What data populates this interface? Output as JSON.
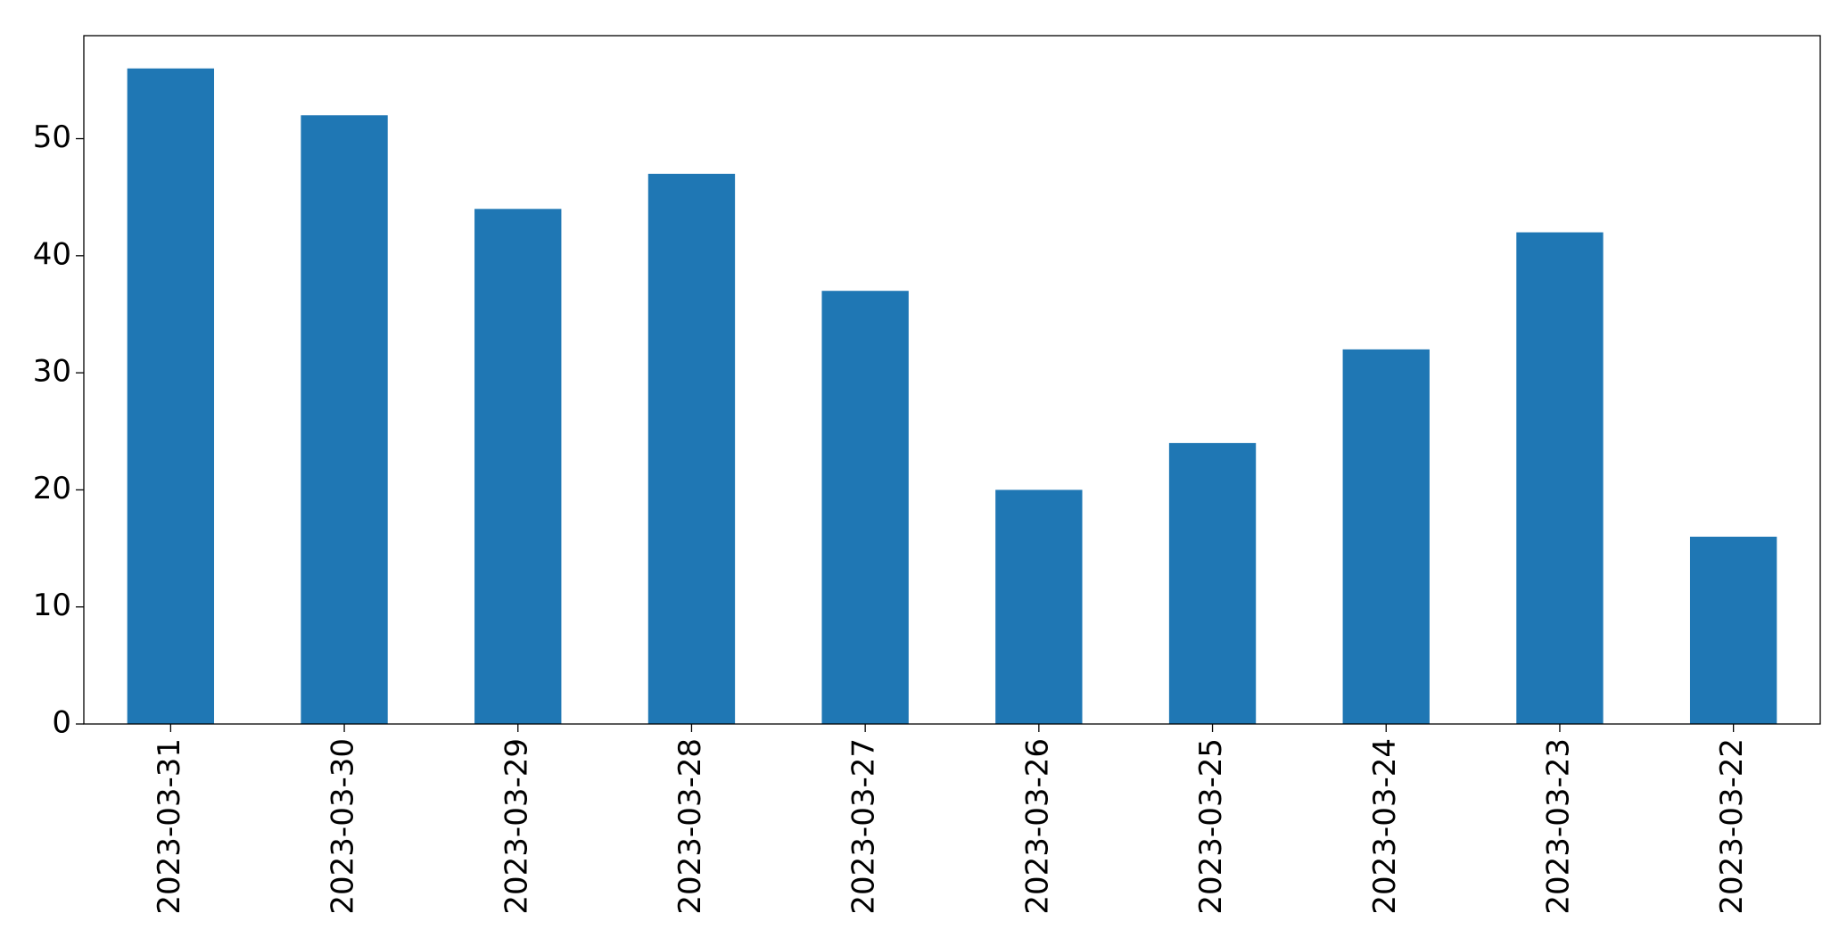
{
  "chart_data": {
    "type": "bar",
    "categories": [
      "2023-03-31",
      "2023-03-30",
      "2023-03-29",
      "2023-03-28",
      "2023-03-27",
      "2023-03-26",
      "2023-03-25",
      "2023-03-24",
      "2023-03-23",
      "2023-03-22"
    ],
    "values": [
      56,
      52,
      44,
      47,
      37,
      20,
      24,
      32,
      42,
      16
    ],
    "color": "#1f77b4",
    "ylim": [
      0,
      58.8
    ],
    "yticks": [
      0,
      10,
      20,
      30,
      40,
      50
    ],
    "grid": false
  }
}
